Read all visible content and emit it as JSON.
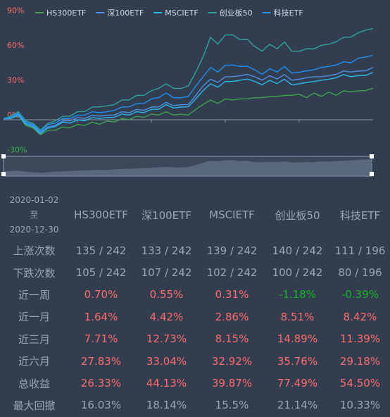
{
  "chart_data": {
    "type": "line",
    "title": "",
    "y_ticks": [
      "90%",
      "60%",
      "30%",
      "0%",
      "-30%"
    ],
    "y_tick_values": [
      90,
      60,
      30,
      0,
      -30
    ],
    "ylim": [
      -30,
      90
    ],
    "x_range": [
      "2020-01-02",
      "2020-12-30"
    ],
    "legend_position": "top-left",
    "series": [
      {
        "name": "HS300ETF",
        "color": "#3fa14d",
        "values": [
          0,
          2,
          3,
          -4,
          -8,
          -12,
          -10,
          -8,
          -7,
          -6,
          -5,
          -4,
          -3,
          -3,
          -2,
          -1,
          0,
          1,
          2,
          3,
          4,
          5,
          6,
          5,
          4,
          5,
          8,
          14,
          16,
          15,
          17,
          18,
          17,
          19,
          18,
          20,
          19,
          21,
          20,
          22,
          21,
          20,
          22,
          21,
          23,
          22,
          24,
          25,
          24,
          26,
          26.3
        ]
      },
      {
        "name": "深100ETF",
        "color": "#4f8fe8",
        "values": [
          0,
          3,
          4,
          -2,
          -6,
          -10,
          -7,
          -4,
          -2,
          0,
          1,
          2,
          3,
          4,
          3,
          5,
          6,
          7,
          8,
          9,
          10,
          12,
          14,
          13,
          12,
          14,
          20,
          30,
          34,
          33,
          36,
          38,
          37,
          40,
          36,
          35,
          37,
          36,
          38,
          35,
          34,
          37,
          36,
          38,
          37,
          40,
          41,
          42,
          41,
          43,
          44.1
        ]
      },
      {
        "name": "MSCIETF",
        "color": "#29b6e8",
        "values": [
          0,
          2,
          3,
          -3,
          -7,
          -11,
          -8,
          -5,
          -3,
          -2,
          -1,
          0,
          1,
          2,
          1,
          3,
          4,
          5,
          6,
          7,
          8,
          10,
          12,
          11,
          10,
          12,
          17,
          26,
          30,
          29,
          32,
          34,
          33,
          36,
          32,
          31,
          33,
          32,
          34,
          31,
          30,
          33,
          32,
          35,
          34,
          37,
          38,
          38,
          37,
          39,
          39.9
        ]
      },
      {
        "name": "创业板50",
        "color": "#2fa39a",
        "values": [
          0,
          4,
          6,
          0,
          -4,
          -8,
          -4,
          0,
          2,
          4,
          6,
          8,
          10,
          12,
          11,
          14,
          16,
          18,
          20,
          22,
          24,
          28,
          30,
          28,
          26,
          30,
          40,
          55,
          70,
          66,
          72,
          74,
          68,
          70,
          62,
          60,
          64,
          62,
          66,
          60,
          58,
          62,
          60,
          65,
          64,
          68,
          70,
          72,
          74,
          78,
          77.5
        ]
      },
      {
        "name": "科技ETF",
        "color": "#1f8ff2",
        "values": [
          0,
          3,
          5,
          -1,
          -5,
          -9,
          -5,
          -2,
          0,
          2,
          3,
          5,
          6,
          7,
          6,
          9,
          10,
          12,
          13,
          15,
          17,
          20,
          22,
          20,
          18,
          21,
          28,
          38,
          44,
          42,
          46,
          48,
          45,
          47,
          42,
          40,
          43,
          42,
          45,
          41,
          40,
          43,
          42,
          46,
          45,
          48,
          49,
          50,
          52,
          55,
          54.5
        ]
      }
    ]
  },
  "stats": {
    "period_start": "2020-01-02",
    "period_sep": "至",
    "period_end": "2020-12-30",
    "columns": [
      "HS300ETF",
      "深100ETF",
      "MSCIETF",
      "创业板50",
      "科技ETF"
    ],
    "rows": [
      {
        "label": "上涨次数",
        "values": [
          "135 / 242",
          "133 / 242",
          "139 / 242",
          "140 / 242",
          "111 / 196"
        ],
        "tones": [
          "neutral",
          "neutral",
          "neutral",
          "neutral",
          "neutral"
        ]
      },
      {
        "label": "下跌次数",
        "values": [
          "105 / 242",
          "107 / 242",
          "102 / 242",
          "100 / 242",
          "80 / 196"
        ],
        "tones": [
          "neutral",
          "neutral",
          "neutral",
          "neutral",
          "neutral"
        ]
      },
      {
        "label": "近一周",
        "values": [
          "0.70%",
          "0.55%",
          "0.31%",
          "-1.18%",
          "-0.39%"
        ],
        "tones": [
          "pos",
          "pos",
          "pos",
          "neg",
          "neg"
        ]
      },
      {
        "label": "近一月",
        "values": [
          "1.64%",
          "4.42%",
          "2.86%",
          "8.51%",
          "8.42%"
        ],
        "tones": [
          "pos",
          "pos",
          "pos",
          "pos",
          "pos"
        ]
      },
      {
        "label": "近三月",
        "values": [
          "7.71%",
          "12.73%",
          "8.15%",
          "14.89%",
          "11.39%"
        ],
        "tones": [
          "pos",
          "pos",
          "pos",
          "pos",
          "pos"
        ]
      },
      {
        "label": "近六月",
        "values": [
          "27.83%",
          "33.04%",
          "32.92%",
          "35.76%",
          "29.18%"
        ],
        "tones": [
          "pos",
          "pos",
          "pos",
          "pos",
          "pos"
        ]
      },
      {
        "label": "总收益",
        "values": [
          "26.33%",
          "44.13%",
          "39.87%",
          "77.49%",
          "54.50%"
        ],
        "tones": [
          "pos",
          "pos",
          "pos",
          "pos",
          "pos"
        ]
      },
      {
        "label": "最大回撤",
        "values": [
          "16.03%",
          "18.14%",
          "15.5%",
          "21.14%",
          "10.33%"
        ],
        "tones": [
          "neutral",
          "neutral",
          "neutral",
          "neutral",
          "neutral"
        ]
      }
    ]
  }
}
